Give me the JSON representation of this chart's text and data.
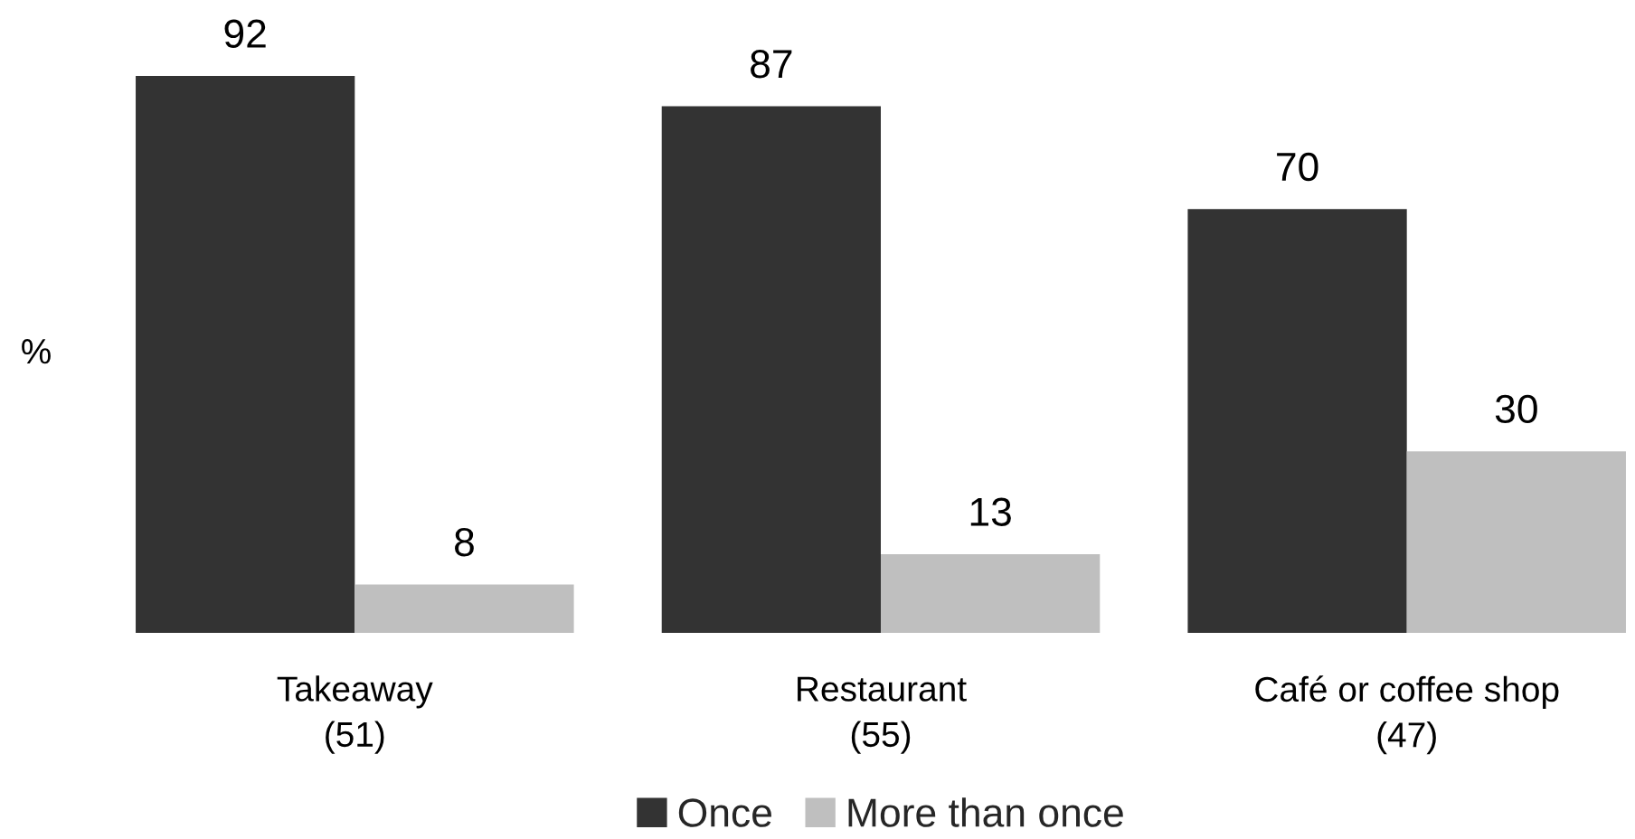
{
  "chart_data": {
    "type": "bar",
    "ylabel": "%",
    "categories": [
      "Takeaway\n(51)",
      "Restaurant\n(55)",
      "Café or coffee shop\n(47)"
    ],
    "series": [
      {
        "name": "Once",
        "color": "#333333",
        "values": [
          92,
          87,
          70
        ]
      },
      {
        "name": "More than once",
        "color": "#bfbfbf",
        "values": [
          8,
          13,
          30
        ]
      }
    ],
    "data_labels": true,
    "legend": "bottom",
    "grid": false,
    "tick_labels": "x"
  }
}
